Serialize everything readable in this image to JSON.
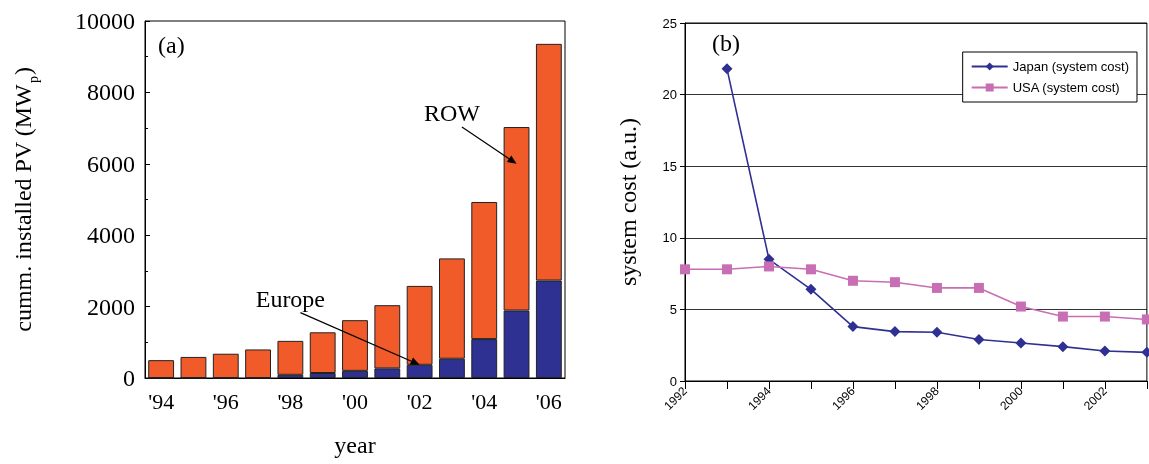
{
  "chart_data": [
    {
      "type": "bar",
      "title": "(a)",
      "xlabel": "year",
      "ylabel": "cumm. installed PV (MW$_{p}$)",
      "stacked": true,
      "categories": [
        "'94",
        null,
        "'96",
        null,
        "'98",
        null,
        "'00",
        null,
        "'02",
        null,
        "'04",
        null,
        "'06"
      ],
      "series": [
        {
          "name": "Europe",
          "color": "#2e3192",
          "values": [
            0,
            0,
            0,
            0,
            90,
            140,
            200,
            270,
            370,
            540,
            1090,
            1890,
            2730
          ]
        },
        {
          "name": "ROW",
          "color": "#f15a29",
          "values": [
            500,
            590,
            680,
            800,
            950,
            1140,
            1420,
            1770,
            2210,
            2810,
            3840,
            5140,
            6630
          ]
        }
      ],
      "ylim": [
        0,
        10000
      ],
      "yticks": [
        0,
        2000,
        4000,
        6000,
        8000,
        10000
      ],
      "grid": false,
      "legend": false
    },
    {
      "type": "line",
      "title": "(b)",
      "ylabel": "system cost (a.u.)",
      "x": [
        1992,
        1993,
        1994,
        1995,
        1996,
        1997,
        1998,
        1999,
        2000,
        2001,
        2002,
        2003
      ],
      "series": [
        {
          "name": "Japan (system cost)",
          "color": "#2e3192",
          "marker": "diamond",
          "values": [
            null,
            21.8,
            8.5,
            6.4,
            3.8,
            3.45,
            3.4,
            2.9,
            2.65,
            2.4,
            2.1,
            2.0
          ]
        },
        {
          "name": "USA (system cost)",
          "color": "#c86eb4",
          "marker": "square",
          "values": [
            7.8,
            7.8,
            8.0,
            7.8,
            7.0,
            6.9,
            6.5,
            6.5,
            5.2,
            4.5,
            4.5,
            4.3
          ]
        }
      ],
      "xlim": [
        1992,
        2003
      ],
      "xticks": [
        1992,
        {
          "value": 1993,
          "label": null
        },
        1994,
        {
          "value": 1995,
          "label": null
        },
        1996,
        {
          "value": 1997,
          "label": null
        },
        1998,
        {
          "value": 1999,
          "label": null
        },
        2000,
        {
          "value": 2001,
          "label": null
        },
        2002,
        {
          "value": 2003,
          "label": null
        }
      ],
      "ylim": [
        0,
        25
      ],
      "yticks": [
        0,
        5,
        10,
        15,
        20,
        25
      ],
      "grid": "y",
      "legend": "top right",
      "line_style": "solid"
    }
  ]
}
